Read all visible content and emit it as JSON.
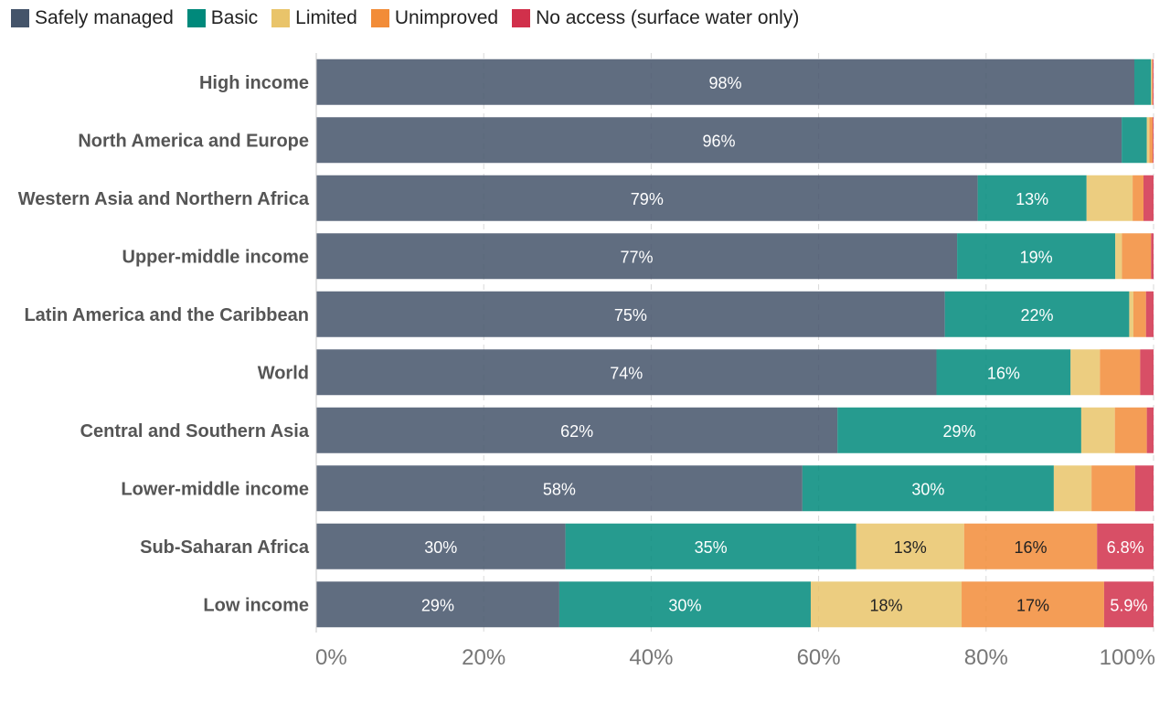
{
  "chart_data": {
    "type": "bar",
    "orientation": "horizontal",
    "stacked": true,
    "legend_position": "top-left",
    "grid": "vertical-dashed",
    "xlim": [
      0,
      100
    ],
    "x_ticks": [
      "0%",
      "20%",
      "40%",
      "60%",
      "80%",
      "100%"
    ],
    "categories": [
      "High income",
      "North America and Europe",
      "Western Asia and Northern Africa",
      "Upper-middle income",
      "Latin America and the Caribbean",
      "World",
      "Central and Southern Asia",
      "Lower-middle income",
      "Sub-Saharan Africa",
      "Low income"
    ],
    "series": [
      {
        "name": "Safely managed",
        "color": "#44546A",
        "label_color": "#ffffff",
        "values": [
          98,
          96,
          79,
          77,
          75,
          74,
          62,
          58,
          30,
          29
        ],
        "labels": [
          "98%",
          "96%",
          "79%",
          "77%",
          "75%",
          "74%",
          "62%",
          "58%",
          "30%",
          "29%"
        ]
      },
      {
        "name": "Basic",
        "color": "#00897B",
        "label_color": "#ffffff",
        "values": [
          2,
          3,
          13,
          19,
          22,
          16,
          29,
          30,
          35,
          30
        ],
        "labels": [
          "",
          "",
          "13%",
          "19%",
          "22%",
          "16%",
          "29%",
          "30%",
          "35%",
          "30%"
        ]
      },
      {
        "name": "Limited",
        "color": "#E9C46A",
        "label_color": "#222222",
        "values": [
          0.1,
          0.3,
          5.5,
          0.8,
          0.5,
          3.5,
          4,
          4.5,
          13,
          18
        ],
        "labels": [
          "",
          "",
          "",
          "",
          "",
          "",
          "",
          "",
          "13%",
          "18%"
        ]
      },
      {
        "name": "Unimproved",
        "color": "#F28C38",
        "label_color": "#222222",
        "values": [
          0.1,
          0.4,
          1.3,
          3.5,
          1.5,
          4.8,
          3.8,
          5.2,
          16,
          17
        ],
        "labels": [
          "",
          "",
          "",
          "",
          "",
          "",
          "",
          "",
          "16%",
          "17%"
        ]
      },
      {
        "name": "No access (surface water only)",
        "color": "#D1304B",
        "label_color": "#ffffff",
        "values": [
          0.1,
          0.1,
          1.2,
          0.3,
          0.9,
          1.6,
          0.8,
          2.2,
          6.8,
          5.9
        ],
        "labels": [
          "",
          "",
          "",
          "",
          "",
          "",
          "",
          "",
          "6.8%",
          "5.9%"
        ]
      }
    ]
  }
}
